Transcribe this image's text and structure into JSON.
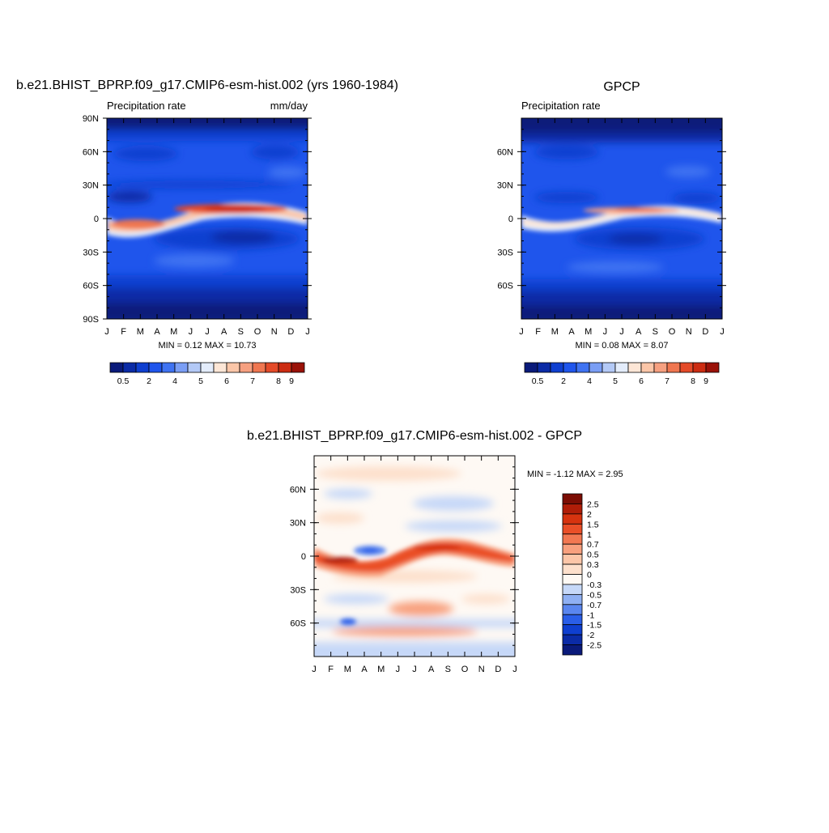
{
  "charts": {
    "model": {
      "title": "b.e21.BHIST_BPRP.f09_g17.CMIP6-esm-hist.002 (yrs 1960-1984)",
      "left_label": "Precipitation rate",
      "right_label": "mm/day",
      "stats": "MIN =   0.12 MAX =  10.73"
    },
    "obs": {
      "title": "GPCP",
      "left_label": "Precipitation rate",
      "stats": "MIN =   0.08 MAX =   8.07"
    },
    "diff": {
      "title": "b.e21.BHIST_BPRP.f09_g17.CMIP6-esm-hist.002 - GPCP",
      "stats": "MIN =  -1.12 MAX =   2.95"
    }
  },
  "x_tick_labels": [
    "J",
    "F",
    "M",
    "A",
    "M",
    "J",
    "J",
    "A",
    "S",
    "O",
    "N",
    "D",
    "J"
  ],
  "y_tick_labels_model": [
    "90N",
    "60N",
    "30N",
    "0",
    "30S",
    "60S",
    "90S"
  ],
  "y_tick_labels_short": [
    "60N",
    "30N",
    "0",
    "30S",
    "60S"
  ],
  "precip_colorbar": {
    "colors": [
      "#0a1a7a",
      "#0b2ba6",
      "#0f3fd0",
      "#1f55ec",
      "#3f73f2",
      "#7a9ef5",
      "#b3c9f6",
      "#e3ecfb",
      "#fde6d6",
      "#fbc6a8",
      "#f6a080",
      "#ef7650",
      "#e44a28",
      "#cc2c12",
      "#9a1208"
    ],
    "labels": [
      "0.5",
      "2",
      "4",
      "5",
      "6",
      "7",
      "8",
      "9"
    ]
  },
  "diff_colorbar": {
    "colors": [
      "#0a1a7a",
      "#0b2ba6",
      "#0f3fd0",
      "#2a5ee8",
      "#5a86ef",
      "#8fb0f3",
      "#c6d8f8",
      "#fef9f4",
      "#fde0cc",
      "#fcc6a8",
      "#f8a07e",
      "#f27852",
      "#ea4f28",
      "#d7330f",
      "#b01d08",
      "#7c0d04"
    ],
    "labels": [
      "2.5",
      "2",
      "1.5",
      "1",
      "0.7",
      "0.5",
      "0.3",
      "0",
      "-0.3",
      "-0.5",
      "-0.7",
      "-1",
      "-1.5",
      "-2",
      "-2.5"
    ]
  },
  "chart_data": [
    {
      "type": "heatmap",
      "title": "b.e21.BHIST_BPRP.f09_g17.CMIP6-esm-hist.002 (yrs 1960-1984)",
      "subtitle_left": "Precipitation rate",
      "units": "mm/day",
      "xlabels": [
        "J",
        "F",
        "M",
        "A",
        "M",
        "J",
        "J",
        "A",
        "S",
        "O",
        "N",
        "D",
        "J"
      ],
      "ylabels": [
        "90N",
        "60N",
        "30N",
        "0",
        "30S",
        "60S",
        "90S"
      ],
      "ylim": [
        -90,
        90
      ],
      "min": 0.12,
      "max": 10.73,
      "itcz": {
        "peak_lat_month": [
          [
            1,
            -5
          ],
          [
            4,
            -1
          ],
          [
            7,
            8
          ],
          [
            10,
            6
          ],
          [
            13,
            -4
          ]
        ],
        "max_value": 10.73
      }
    },
    {
      "type": "heatmap",
      "title": "GPCP",
      "subtitle_left": "Precipitation rate",
      "xlabels": [
        "J",
        "F",
        "M",
        "A",
        "M",
        "J",
        "J",
        "A",
        "S",
        "O",
        "N",
        "D",
        "J"
      ],
      "ylabels": [
        "60N",
        "30N",
        "0",
        "30S",
        "60S"
      ],
      "ylim": [
        -90,
        90
      ],
      "min": 0.08,
      "max": 8.07
    },
    {
      "type": "heatmap",
      "title": "b.e21.BHIST_BPRP.f09_g17.CMIP6-esm-hist.002 - GPCP",
      "xlabels": [
        "J",
        "F",
        "M",
        "A",
        "M",
        "J",
        "J",
        "A",
        "S",
        "O",
        "N",
        "D",
        "J"
      ],
      "ylabels": [
        "60N",
        "30N",
        "0",
        "30S",
        "60S"
      ],
      "ylim": [
        -90,
        90
      ],
      "min": -1.12,
      "max": 2.95
    }
  ]
}
